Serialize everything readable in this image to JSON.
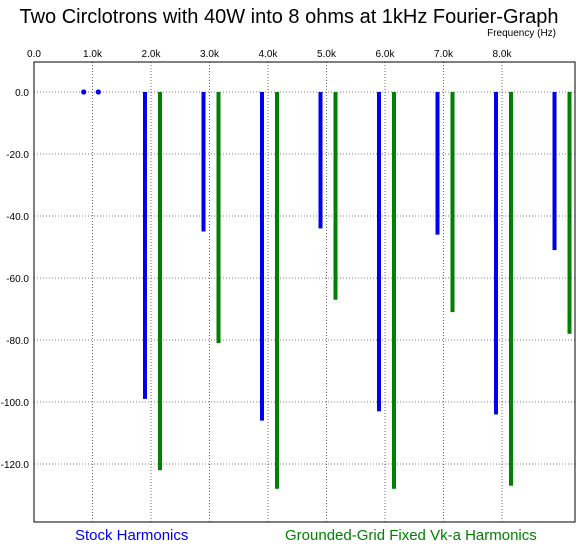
{
  "chart_data": {
    "type": "bar",
    "title": "Two Circlotrons with 40W into 8 ohms at 1kHz Fourier-Graph",
    "xlabel": "Frequency  (Hz)",
    "ylabel": "",
    "xlim": [
      0,
      9.1
    ],
    "ylim": [
      -140,
      10
    ],
    "x_ticks": [
      "0.0",
      "1.0k",
      "2.0k",
      "3.0k",
      "4.0k",
      "5.0k",
      "6.0k",
      "7.0k",
      "8.0k"
    ],
    "y_ticks": [
      "0.0",
      "-20.0",
      "-40.0",
      "-60.0",
      "-80.0",
      "-100.0",
      "-120.0"
    ],
    "grid": true,
    "series": [
      {
        "name": "Stock Harmonics",
        "color": "#0000ee",
        "x": [
          2,
          3,
          4,
          5,
          6,
          7,
          8,
          9
        ],
        "values": [
          -99,
          -45,
          -106,
          -44,
          -103,
          -46,
          -104,
          -51
        ]
      },
      {
        "name": "Grounded-Grid Fixed Vk-a Harmonics",
        "color": "#008000",
        "x": [
          2,
          3,
          4,
          5,
          6,
          7,
          8,
          9
        ],
        "values": [
          -122,
          -81,
          -128,
          -67,
          -128,
          -71,
          -127,
          -78
        ]
      }
    ],
    "markers": [
      {
        "x": 0.85,
        "y": 0,
        "color": "#0000ee"
      },
      {
        "x": 1.1,
        "y": 0,
        "color": "#0000ee"
      }
    ]
  }
}
